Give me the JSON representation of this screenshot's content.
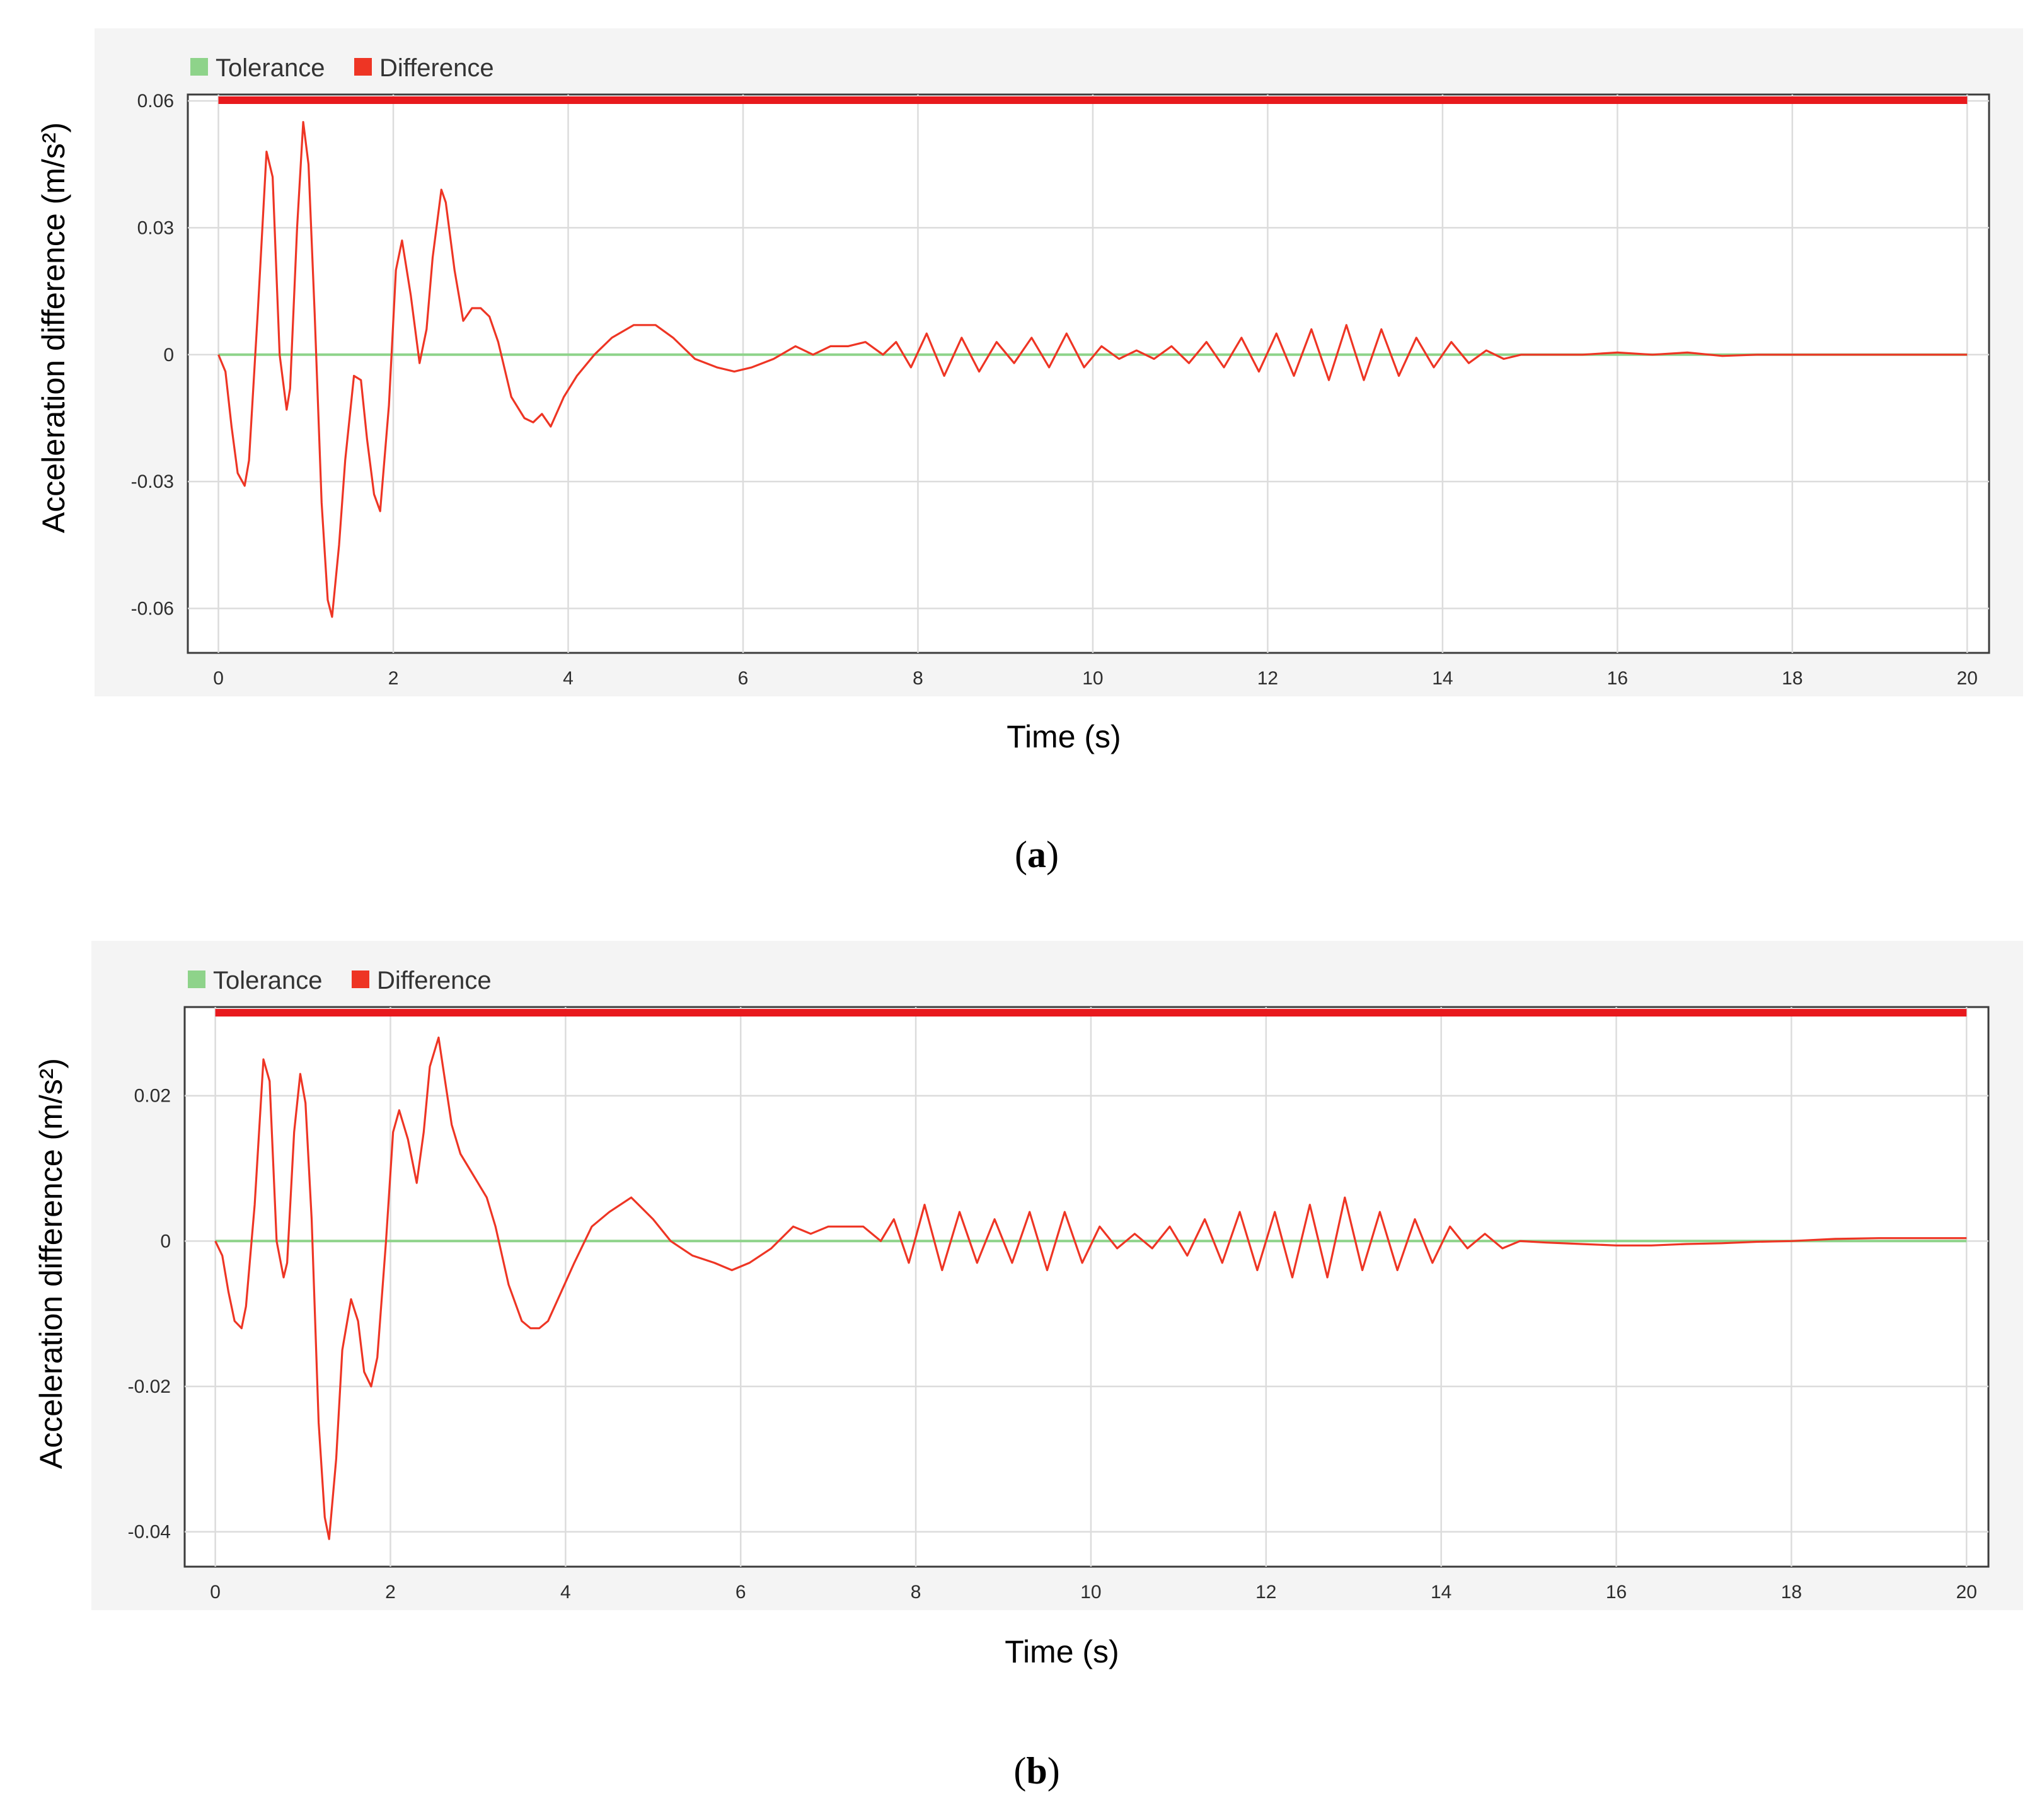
{
  "colors": {
    "tolerance": "#8ed38a",
    "difference": "#ee3524",
    "tolerance_bar": "#e8191d"
  },
  "chart_data": [
    {
      "type": "line",
      "panel_label_open": "(",
      "panel_label_letter": "a",
      "panel_label_close": ")",
      "xlabel": "Time (s)",
      "ylabel": "Acceleration difference (m/s²)",
      "xlim": [
        -0.35,
        20.25
      ],
      "ylim": [
        -0.0705,
        0.0615
      ],
      "xticks": [
        0,
        2,
        4,
        6,
        8,
        10,
        12,
        14,
        16,
        18,
        20
      ],
      "xtick_labels": [
        "0",
        "2",
        "4",
        "6",
        "8",
        "10",
        "12",
        "14",
        "16",
        "18",
        "20"
      ],
      "yticks": [
        0.06,
        0.03,
        0,
        -0.03,
        -0.06
      ],
      "ytick_labels": [
        "0.06",
        "0.03",
        "0",
        "-0.03",
        "-0.06"
      ],
      "grid": true,
      "legend": "top-left",
      "legend_items": [
        {
          "name": "Tolerance",
          "color": "#8ed38a"
        },
        {
          "name": "Difference",
          "color": "#ee3524"
        }
      ],
      "series": [
        {
          "name": "Tolerance",
          "x": [
            0,
            20
          ],
          "y": [
            0,
            0
          ]
        },
        {
          "name": "Difference",
          "x": [
            0,
            0.08,
            0.15,
            0.22,
            0.3,
            0.35,
            0.45,
            0.55,
            0.62,
            0.7,
            0.78,
            0.82,
            0.9,
            0.97,
            1.03,
            1.1,
            1.18,
            1.25,
            1.3,
            1.38,
            1.45,
            1.55,
            1.63,
            1.7,
            1.78,
            1.85,
            1.95,
            2.03,
            2.1,
            2.2,
            2.3,
            2.38,
            2.45,
            2.55,
            2.6,
            2.7,
            2.8,
            2.9,
            3.0,
            3.1,
            3.2,
            3.35,
            3.5,
            3.6,
            3.7,
            3.8,
            3.95,
            4.1,
            4.3,
            4.5,
            4.75,
            5.0,
            5.2,
            5.45,
            5.7,
            5.9,
            6.1,
            6.35,
            6.6,
            6.8,
            7.0,
            7.2,
            7.4,
            7.6,
            7.75,
            7.92,
            8.1,
            8.3,
            8.5,
            8.7,
            8.9,
            9.1,
            9.3,
            9.5,
            9.7,
            9.9,
            10.1,
            10.3,
            10.5,
            10.7,
            10.9,
            11.1,
            11.3,
            11.5,
            11.7,
            11.9,
            12.1,
            12.3,
            12.5,
            12.7,
            12.9,
            13.1,
            13.3,
            13.5,
            13.7,
            13.9,
            14.1,
            14.3,
            14.5,
            14.7,
            14.9,
            15.2,
            15.6,
            16.0,
            16.4,
            16.8,
            17.2,
            17.6,
            18.0,
            18.5,
            19.0,
            19.5,
            20.0
          ],
          "y": [
            0,
            -0.004,
            -0.017,
            -0.028,
            -0.031,
            -0.025,
            0.01,
            0.048,
            0.042,
            0.0,
            -0.013,
            -0.008,
            0.03,
            0.055,
            0.045,
            0.01,
            -0.035,
            -0.058,
            -0.062,
            -0.045,
            -0.025,
            -0.005,
            -0.006,
            -0.02,
            -0.033,
            -0.037,
            -0.012,
            0.02,
            0.027,
            0.014,
            -0.002,
            0.006,
            0.023,
            0.039,
            0.036,
            0.02,
            0.008,
            0.011,
            0.011,
            0.009,
            0.003,
            -0.01,
            -0.015,
            -0.016,
            -0.014,
            -0.017,
            -0.01,
            -0.005,
            0.0,
            0.004,
            0.007,
            0.007,
            0.004,
            -0.001,
            -0.003,
            -0.004,
            -0.003,
            -0.001,
            0.002,
            0.0,
            0.002,
            0.002,
            0.003,
            0.0,
            0.003,
            -0.003,
            0.005,
            -0.005,
            0.004,
            -0.004,
            0.003,
            -0.002,
            0.004,
            -0.003,
            0.005,
            -0.003,
            0.002,
            -0.001,
            0.001,
            -0.001,
            0.002,
            -0.002,
            0.003,
            -0.003,
            0.004,
            -0.004,
            0.005,
            -0.005,
            0.006,
            -0.006,
            0.007,
            -0.006,
            0.006,
            -0.005,
            0.004,
            -0.003,
            0.003,
            -0.002,
            0.001,
            -0.001,
            0.0,
            0.0,
            0.0,
            0.0005,
            0.0,
            0.0005,
            -0.0003,
            0.0,
            0.0,
            0.0,
            0.0,
            0.0,
            0.0
          ]
        }
      ]
    },
    {
      "type": "line",
      "panel_label_open": "(",
      "panel_label_letter": "b",
      "panel_label_close": ")",
      "xlabel": "Time (s)",
      "ylabel": "Acceleration difference (m/s²)",
      "xlim": [
        -0.35,
        20.25
      ],
      "ylim": [
        -0.0448,
        0.0322
      ],
      "xticks": [
        0,
        2,
        4,
        6,
        8,
        10,
        12,
        14,
        16,
        18,
        20
      ],
      "xtick_labels": [
        "0",
        "2",
        "4",
        "6",
        "8",
        "10",
        "12",
        "14",
        "16",
        "18",
        "20"
      ],
      "yticks": [
        0.02,
        0,
        -0.02,
        -0.04
      ],
      "ytick_labels": [
        "0.02",
        "0",
        "-0.02",
        "-0.04"
      ],
      "grid": true,
      "legend": "top-left",
      "legend_items": [
        {
          "name": "Tolerance",
          "color": "#8ed38a"
        },
        {
          "name": "Difference",
          "color": "#ee3524"
        }
      ],
      "series": [
        {
          "name": "Tolerance",
          "x": [
            0,
            20
          ],
          "y": [
            0,
            0
          ]
        },
        {
          "name": "Difference",
          "x": [
            0,
            0.08,
            0.15,
            0.22,
            0.3,
            0.35,
            0.45,
            0.55,
            0.62,
            0.7,
            0.78,
            0.82,
            0.9,
            0.97,
            1.03,
            1.1,
            1.18,
            1.25,
            1.3,
            1.38,
            1.45,
            1.55,
            1.63,
            1.7,
            1.78,
            1.85,
            1.95,
            2.03,
            2.1,
            2.2,
            2.3,
            2.38,
            2.45,
            2.55,
            2.6,
            2.7,
            2.8,
            2.9,
            3.0,
            3.1,
            3.2,
            3.35,
            3.5,
            3.6,
            3.7,
            3.8,
            3.95,
            4.1,
            4.3,
            4.5,
            4.75,
            5.0,
            5.2,
            5.45,
            5.7,
            5.9,
            6.1,
            6.35,
            6.6,
            6.8,
            7.0,
            7.2,
            7.4,
            7.6,
            7.75,
            7.92,
            8.1,
            8.3,
            8.5,
            8.7,
            8.9,
            9.1,
            9.3,
            9.5,
            9.7,
            9.9,
            10.1,
            10.3,
            10.5,
            10.7,
            10.9,
            11.1,
            11.3,
            11.5,
            11.7,
            11.9,
            12.1,
            12.3,
            12.5,
            12.7,
            12.9,
            13.1,
            13.3,
            13.5,
            13.7,
            13.9,
            14.1,
            14.3,
            14.5,
            14.7,
            14.9,
            15.2,
            15.6,
            16.0,
            16.4,
            16.8,
            17.2,
            17.6,
            18.0,
            18.5,
            19.0,
            19.5,
            20.0
          ],
          "y": [
            0,
            -0.002,
            -0.007,
            -0.011,
            -0.012,
            -0.009,
            0.005,
            0.025,
            0.022,
            0.0,
            -0.005,
            -0.003,
            0.015,
            0.023,
            0.019,
            0.003,
            -0.025,
            -0.038,
            -0.041,
            -0.03,
            -0.015,
            -0.008,
            -0.011,
            -0.018,
            -0.02,
            -0.016,
            0.0,
            0.015,
            0.018,
            0.014,
            0.008,
            0.015,
            0.024,
            0.028,
            0.024,
            0.016,
            0.012,
            0.01,
            0.008,
            0.006,
            0.002,
            -0.006,
            -0.011,
            -0.012,
            -0.012,
            -0.011,
            -0.007,
            -0.003,
            0.002,
            0.004,
            0.006,
            0.003,
            0.0,
            -0.002,
            -0.003,
            -0.004,
            -0.003,
            -0.001,
            0.002,
            0.001,
            0.002,
            0.002,
            0.002,
            0.0,
            0.003,
            -0.003,
            0.005,
            -0.004,
            0.004,
            -0.003,
            0.003,
            -0.003,
            0.004,
            -0.004,
            0.004,
            -0.003,
            0.002,
            -0.001,
            0.001,
            -0.001,
            0.002,
            -0.002,
            0.003,
            -0.003,
            0.004,
            -0.004,
            0.004,
            -0.005,
            0.005,
            -0.005,
            0.006,
            -0.004,
            0.004,
            -0.004,
            0.003,
            -0.003,
            0.002,
            -0.001,
            0.001,
            -0.001,
            0.0,
            -0.0002,
            -0.0004,
            -0.0006,
            -0.0006,
            -0.0004,
            -0.0003,
            -0.0001,
            0.0,
            0.0003,
            0.0004,
            0.0004,
            0.0004
          ]
        }
      ]
    }
  ]
}
